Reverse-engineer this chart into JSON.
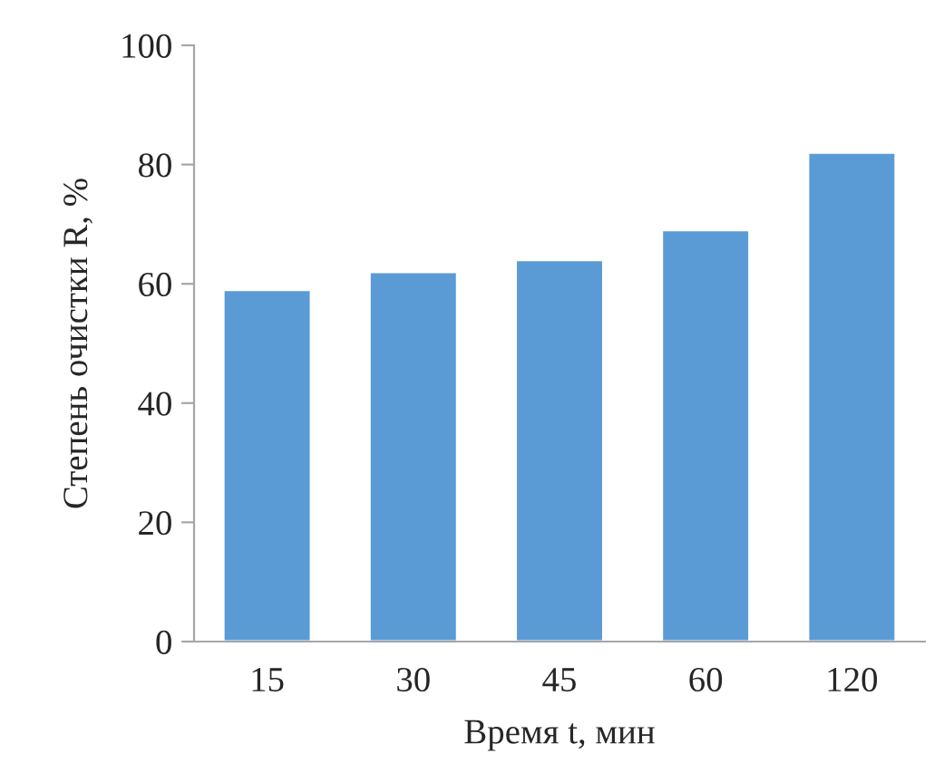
{
  "chart_data": {
    "type": "bar",
    "xlabel": "Время t, мин",
    "ylabel": "Степень очистки R, %",
    "categories": [
      "15",
      "30",
      "45",
      "60",
      "120"
    ],
    "values": [
      59,
      62,
      64,
      69,
      82
    ],
    "color": "#5b9bd5",
    "ylim": [
      0,
      100
    ],
    "yticks": [
      0,
      20,
      40,
      60,
      80,
      100
    ],
    "grid": false
  }
}
